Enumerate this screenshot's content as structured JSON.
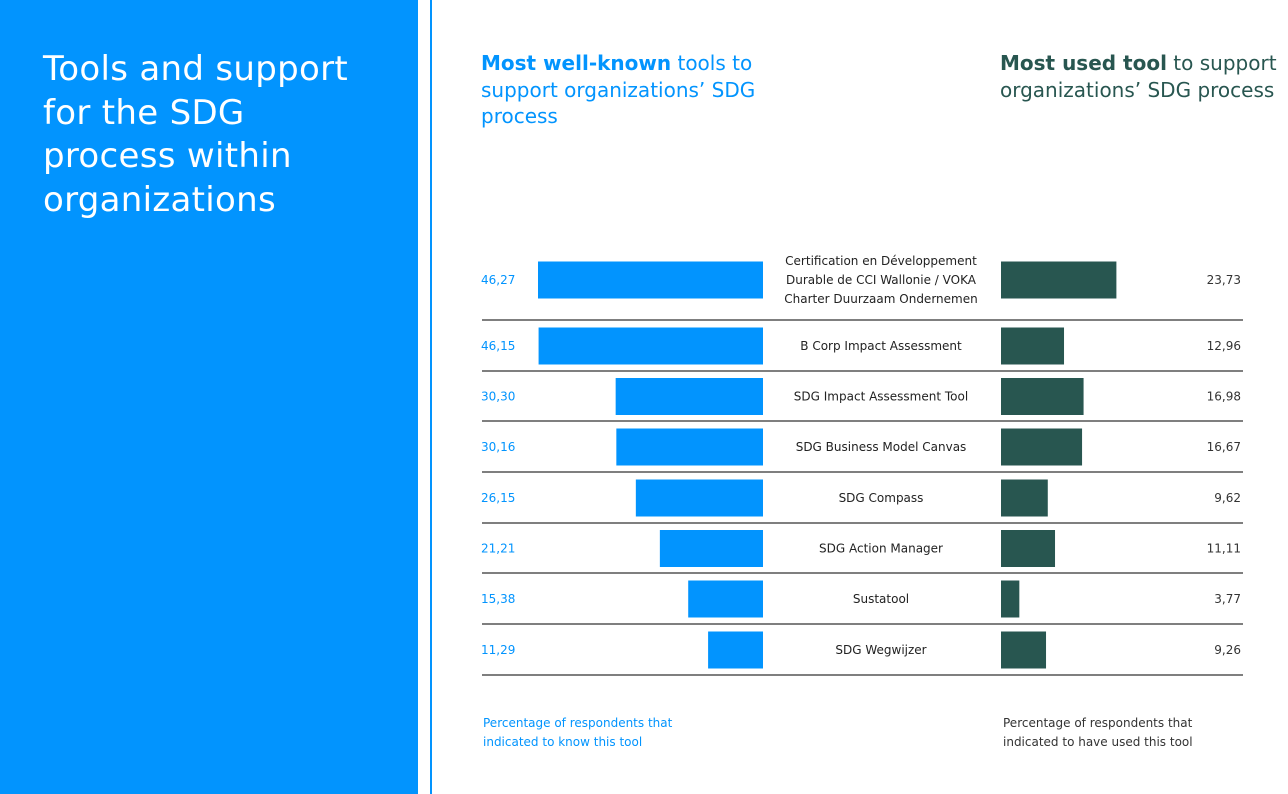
{
  "panel": {
    "title": "Tools and support for the SDG process within organizations"
  },
  "headings": {
    "known_highlight": "Most well-known",
    "known_rest": " tools to support organizations’ SDG process",
    "used_highlight": "Most used tool",
    "used_rest": " to support organizations’ SDG process"
  },
  "footnotes": {
    "known": "Percentage of respondents that indicated to know this tool",
    "used": "Percentage of respondents that indicated to have used this tool"
  },
  "chart_data": {
    "type": "bar",
    "categories": [
      [
        "Certification en Développement",
        "Durable de CCI Wallonie / VOKA",
        "Charter Duurzaam Ondernemen"
      ],
      [
        "B Corp Impact Assessment"
      ],
      [
        "SDG Impact Assessment Tool"
      ],
      [
        "SDG Business Model Canvas"
      ],
      [
        "SDG Compass"
      ],
      [
        "SDG Action Manager"
      ],
      [
        "Sustatool"
      ],
      [
        "SDG Wegwijzer"
      ]
    ],
    "series": [
      {
        "values": [
          46.27,
          46.15,
          30.3,
          30.16,
          26.15,
          21.21,
          15.38,
          11.29
        ],
        "labels": [
          "46,27",
          "46,15",
          "30,30",
          "30,16",
          "26,15",
          "21,21",
          "15,38",
          "11,29"
        ],
        "color": "#0294fe"
      },
      {
        "values": [
          23.73,
          12.96,
          16.98,
          16.67,
          9.62,
          11.11,
          3.77,
          9.26
        ],
        "labels": [
          "23,73",
          "12,96",
          "16,98",
          "16,67",
          "9,62",
          "11,11",
          "3,77",
          "9,26"
        ],
        "color": "#285650"
      }
    ],
    "xlim": [
      0,
      50
    ]
  }
}
